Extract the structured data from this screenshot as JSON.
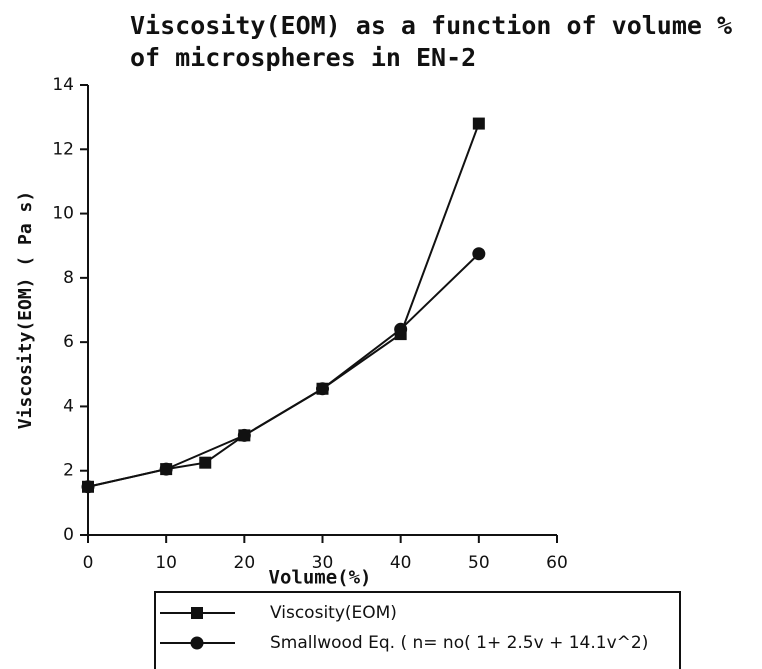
{
  "chart_data": {
    "type": "line",
    "title": "Viscosity(EOM) as a function of volume % of microspheres in EN-2",
    "x_label": "Volume(%)",
    "y_label": "Viscosity(EOM) ( Pa  s)",
    "xlim": [
      0,
      60
    ],
    "xticks": [
      0,
      10,
      20,
      30,
      40,
      50,
      60
    ],
    "ylim": [
      0,
      14
    ],
    "yticks": [
      0,
      2,
      4,
      6,
      8,
      10,
      12,
      14
    ],
    "series": [
      {
        "name": "Viscosity(EOM)",
        "color": "#111111",
        "marker": "square",
        "x": [
          0,
          10,
          15,
          20,
          30,
          40,
          50
        ],
        "values": [
          1.5,
          2.05,
          2.25,
          3.1,
          4.55,
          6.25,
          12.8
        ]
      },
      {
        "name": "Smallwood Eq. (  n= no( 1+ 2.5v + 14.1v^2)",
        "color": "#111111",
        "marker": "circle",
        "x": [
          0,
          10,
          20,
          30,
          40,
          50
        ],
        "values": [
          1.5,
          2.05,
          3.1,
          4.55,
          6.4,
          8.75
        ]
      }
    ]
  }
}
